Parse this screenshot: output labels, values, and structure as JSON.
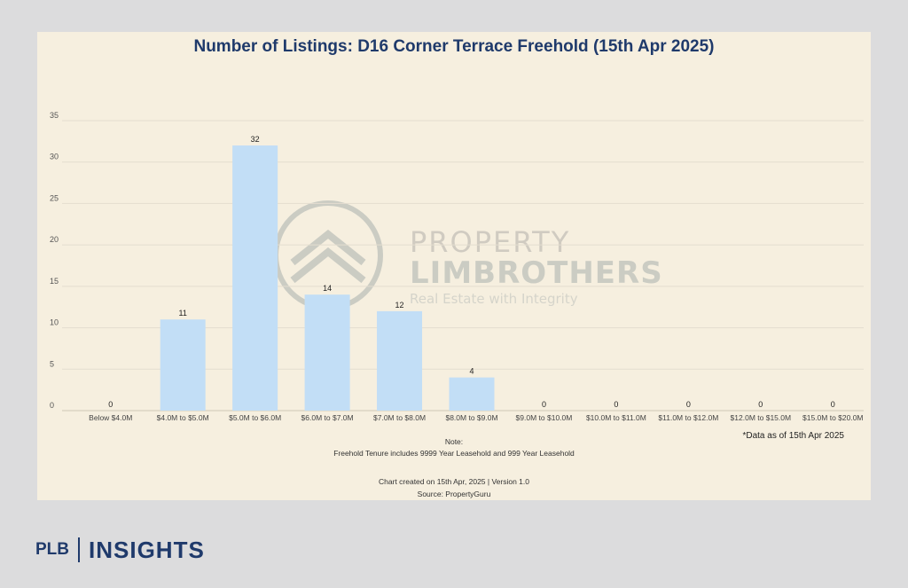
{
  "chart_data": {
    "type": "bar",
    "title": "Number of Listings: D16 Corner Terrace Freehold (15th Apr 2025)",
    "xlabel": "",
    "ylabel": "",
    "ylim": [
      0,
      35
    ],
    "yticks": [
      0,
      5,
      10,
      15,
      20,
      25,
      30,
      35
    ],
    "grid": true,
    "legend": "none",
    "categories": [
      "Below $4.0M",
      "$4.0M to $5.0M",
      "$5.0M to $6.0M",
      "$6.0M to $7.0M",
      "$7.0M to $8.0M",
      "$8.0M to $9.0M",
      "$9.0M to $10.0M",
      "$10.0M to $11.0M",
      "$11.0M to $12.0M",
      "$12.0M to $15.0M",
      "$15.0M to $20.0M"
    ],
    "values": [
      0,
      11,
      32,
      14,
      12,
      4,
      0,
      0,
      0,
      0,
      0
    ],
    "bar_color": "#c2def6",
    "data_labels": true
  },
  "annotations": {
    "data_as_of": "*Data as of 15th Apr 2025",
    "note_heading": "Note:",
    "note_text": "Freehold Tenure includes 9999 Year Leasehold and 999 Year Leasehold",
    "created": "Chart created on 15th Apr, 2025 | Version 1.0",
    "source": "Source: PropertyGuru"
  },
  "watermark": {
    "line1": "PROPERTY",
    "line2": "LIMBROTHERS",
    "line3": "Real Estate with Integrity"
  },
  "brand": {
    "left": "PLB",
    "right": "INSIGHTS"
  },
  "colors": {
    "background": "#dcdcdd",
    "card": "#f6efdf",
    "title": "#1f3a6b",
    "gridline": "#e4ddcf"
  }
}
